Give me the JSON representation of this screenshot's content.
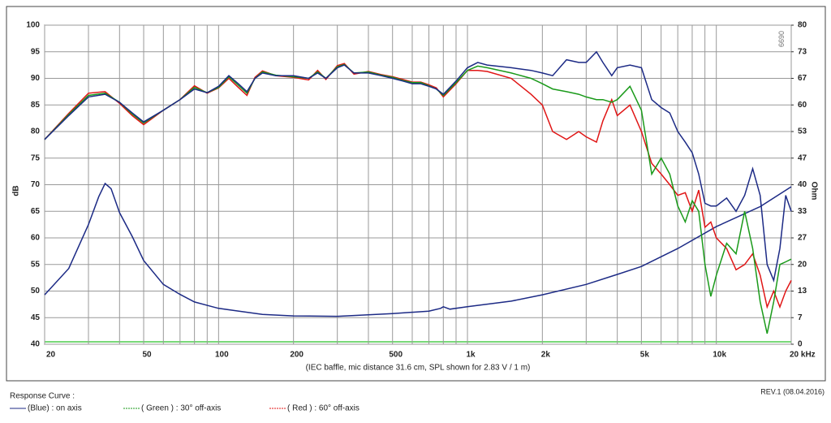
{
  "chart_data": {
    "type": "line",
    "x_label": "(IEC baffle, mic distance 31.6 cm, SPL shown for 2.83 V / 1 m)",
    "y_label": "dB",
    "y2_label": "Ohm",
    "legend_title": "Response Curve :",
    "revision": "REV.1 (08.04.2016)",
    "model": "0699",
    "log_x": true,
    "grid": true,
    "xlim": [
      20,
      20000
    ],
    "ylim": [
      40,
      100
    ],
    "y2lim": [
      0,
      80
    ],
    "xticks": [
      20,
      50,
      100,
      200,
      500,
      {
        "value": 1000,
        "label": "1k"
      },
      {
        "value": 2000,
        "label": "2k"
      },
      {
        "value": 5000,
        "label": "5k"
      },
      {
        "value": 10000,
        "label": "10k"
      },
      {
        "value": 20000,
        "label": "20 kHz"
      }
    ],
    "x_grid": [
      20,
      30,
      40,
      50,
      60,
      70,
      80,
      90,
      100,
      200,
      300,
      400,
      500,
      600,
      700,
      800,
      900,
      1000,
      2000,
      3000,
      4000,
      5000,
      6000,
      7000,
      8000,
      9000,
      10000,
      20000
    ],
    "yticks": [
      40,
      45,
      50,
      55,
      60,
      65,
      70,
      75,
      80,
      85,
      90,
      95,
      100
    ],
    "y2ticks": [
      0,
      {
        "value": 6.667,
        "label": "7"
      },
      {
        "value": 13.333,
        "label": "13"
      },
      20,
      {
        "value": 26.667,
        "label": "27"
      },
      {
        "value": 33.333,
        "label": "33"
      },
      40,
      {
        "value": 46.667,
        "label": "47"
      },
      {
        "value": 53.333,
        "label": "53"
      },
      60,
      {
        "value": 66.667,
        "label": "67"
      },
      {
        "value": 73.333,
        "label": "73"
      },
      80
    ],
    "x": [
      20,
      25,
      30,
      35,
      40,
      45,
      50,
      60,
      70,
      80,
      90,
      100,
      110,
      120,
      130,
      140,
      150,
      170,
      200,
      230,
      250,
      270,
      300,
      320,
      350,
      400,
      450,
      500,
      550,
      600,
      650,
      700,
      750,
      800,
      900,
      1000,
      1100,
      1200,
      1500,
      1800,
      2000,
      2200,
      2500,
      2800,
      3000,
      3300,
      3500,
      3800,
      4000,
      4500,
      5000,
      5500,
      6000,
      6500,
      7000,
      7500,
      8000,
      8500,
      9000,
      9500,
      10000,
      11000,
      12000,
      13000,
      14000,
      15000,
      16000,
      17000,
      18000,
      19000,
      20000
    ],
    "series": [
      {
        "name": "(Blue)  : on axis",
        "color": "#1c2a85",
        "values": [
          78.5,
          83,
          86.5,
          87,
          85.5,
          83.5,
          81.8,
          84,
          86,
          88,
          87.3,
          88.5,
          90.5,
          89,
          87.5,
          90,
          91,
          90.5,
          90.5,
          90,
          91,
          90,
          92,
          92.5,
          91,
          91,
          90.5,
          90,
          89.5,
          89,
          89,
          88.5,
          88,
          87,
          89.5,
          92,
          93,
          92.5,
          92,
          91.5,
          91,
          90.5,
          93.5,
          93,
          93,
          95,
          93,
          90.5,
          92,
          92.5,
          92,
          86,
          84.5,
          83.5,
          80,
          78,
          76,
          72,
          66.5,
          66,
          66,
          67.5,
          65,
          68,
          73,
          68,
          55,
          52,
          58,
          68,
          65
        ]
      },
      {
        "name": "( Green ) : 30° off-axis",
        "color": "#1a9a1a",
        "values": [
          78.5,
          83.2,
          86.8,
          87.2,
          85.5,
          83.3,
          81.6,
          84,
          86,
          88.3,
          87.3,
          88.3,
          90.3,
          88.7,
          87.2,
          90,
          91.2,
          90.6,
          90.3,
          90,
          91.2,
          90,
          92.2,
          92.6,
          91,
          91.2,
          90.6,
          90.2,
          89.6,
          89.2,
          89.2,
          88.6,
          88,
          86.8,
          89.2,
          91.5,
          92.3,
          92,
          91,
          90,
          89,
          88,
          87.5,
          87,
          86.5,
          86,
          86,
          85.5,
          86,
          88.5,
          84,
          72,
          75,
          72,
          66,
          63,
          67,
          65,
          55,
          49,
          53,
          59,
          57,
          65,
          58,
          48,
          42,
          48,
          55,
          55.5,
          56
        ]
      },
      {
        "name": "( Red ) : 60° off-axis",
        "color": "#e01515",
        "values": [
          78.5,
          83.4,
          87.2,
          87.5,
          85.3,
          83,
          81.3,
          84,
          86,
          88.6,
          87.2,
          88.2,
          90,
          88.3,
          86.8,
          90.2,
          91.4,
          90.5,
          90.2,
          89.7,
          91.5,
          89.8,
          92.4,
          92.8,
          90.8,
          91.3,
          90.7,
          90.3,
          89.8,
          89.3,
          89.3,
          88.8,
          88.2,
          86.5,
          89,
          91.5,
          91.5,
          91.3,
          90,
          87,
          85,
          80,
          78.5,
          80,
          79,
          78,
          82,
          86,
          83,
          85,
          80,
          74,
          72,
          70,
          68,
          68.5,
          65,
          69,
          62,
          63,
          60,
          58,
          54,
          55,
          57,
          53,
          47,
          50,
          47,
          50,
          52
        ]
      },
      {
        "axis": "y2",
        "color": "#1c2a85",
        "x": [
          20,
          25,
          30,
          33,
          35,
          37,
          40,
          45,
          50,
          60,
          70,
          80,
          100,
          150,
          200,
          300,
          500,
          700,
          780,
          800,
          850,
          1000,
          1500,
          2000,
          3000,
          4000,
          5000,
          7000,
          10000,
          15000,
          20000
        ],
        "values": [
          12.4,
          19,
          30,
          37,
          40.3,
          39,
          33,
          27,
          21,
          15,
          12.5,
          10.6,
          9,
          7.5,
          7.1,
          7,
          7.7,
          8.3,
          9,
          9.4,
          8.8,
          9.4,
          10.8,
          12.4,
          15,
          17.5,
          19.5,
          24,
          29.5,
          34.5,
          39.5
        ]
      }
    ]
  }
}
